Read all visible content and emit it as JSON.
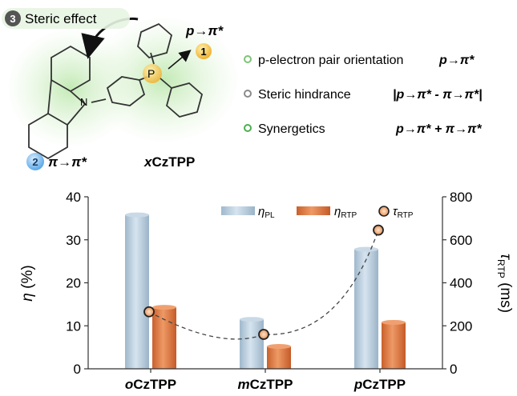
{
  "scheme": {
    "steric_label": "Steric effect",
    "steric_number": "3",
    "p_number": "1",
    "p_label": "p→π*",
    "pi_number": "2",
    "pi_label": "π→π*",
    "molecule_prefix": "x",
    "molecule_name": "CzTPP",
    "n_atom": "N",
    "p_atom": "P",
    "legend": [
      {
        "text": "p-electron pair orientation",
        "formula": "p→π*",
        "color": "#7cc576"
      },
      {
        "text": "Steric hindrance",
        "formula": "|p→π* - π→π*|",
        "color": "#8a8a8a"
      },
      {
        "text": "Synergetics",
        "formula": "p→π* + π→π*",
        "color": "#4caf50"
      }
    ]
  },
  "chart_data": {
    "type": "bar",
    "categories": [
      {
        "prefix": "o",
        "name": "CzTPP"
      },
      {
        "prefix": "m",
        "name": "CzTPP"
      },
      {
        "prefix": "p",
        "name": "CzTPP"
      }
    ],
    "series": [
      {
        "symbol": "η",
        "subscript": "PL",
        "values": [
          35.8,
          11.5,
          27.8
        ],
        "axis": "left",
        "color": "#b4cde0"
      },
      {
        "symbol": "η",
        "subscript": "RTP",
        "values": [
          14.3,
          5.2,
          10.8
        ],
        "axis": "left",
        "color": "#e07a45"
      },
      {
        "symbol": "τ",
        "subscript": "RTP",
        "values": [
          265,
          160,
          645
        ],
        "axis": "right",
        "type": "scatter-dashed-line",
        "color": "#e8935a"
      }
    ],
    "ylabel_left": {
      "symbol": "η",
      "unit": " (%)"
    },
    "ylabel_right": {
      "symbol": "τ",
      "subscript": "RTP",
      "unit": " (ms)"
    },
    "ylim_left": [
      0,
      40
    ],
    "ylim_right": [
      0,
      800
    ],
    "yticks_left": [
      "0",
      "10",
      "20",
      "30",
      "40"
    ],
    "yticks_right": [
      "0",
      "200",
      "400",
      "600",
      "800"
    ],
    "legend_position": "top-right",
    "grid": false
  }
}
